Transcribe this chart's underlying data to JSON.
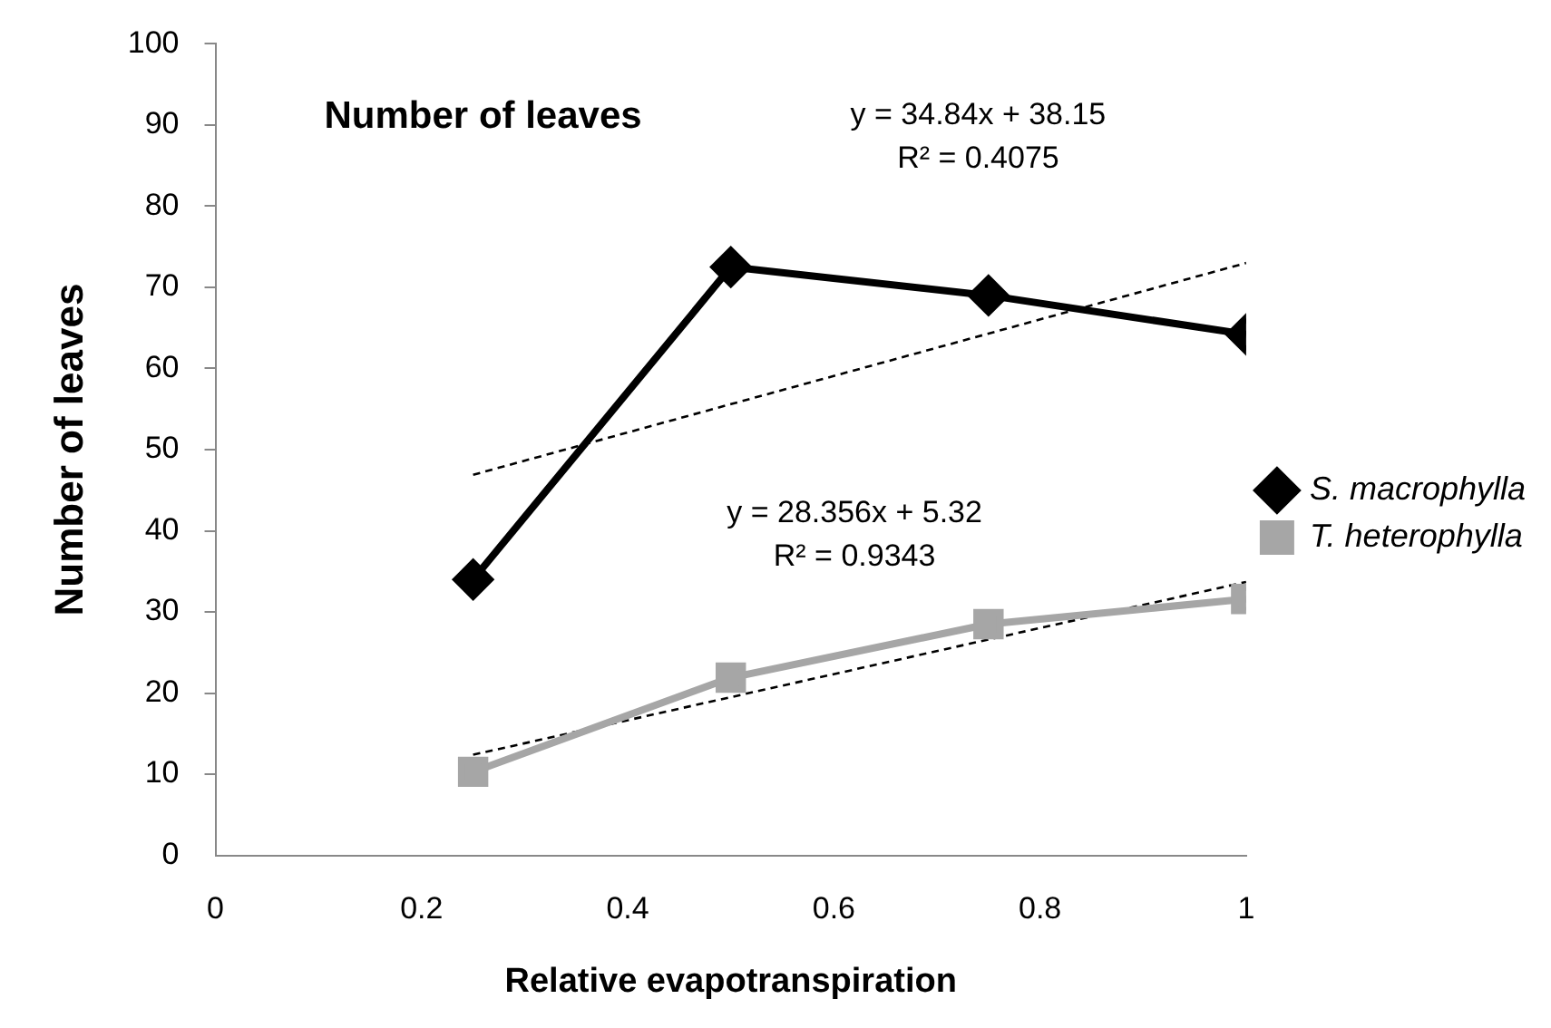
{
  "chart_data": {
    "type": "line",
    "title": "Number of leaves",
    "xlabel": "Relative evapotranspiration",
    "ylabel": "Number of leaves",
    "x": [
      0.25,
      0.5,
      0.75,
      1
    ],
    "series": [
      {
        "name": "S. macrophylla",
        "color": "#000000",
        "values": [
          34,
          72.5,
          69,
          64.2
        ],
        "marker": "diamond"
      },
      {
        "name": "T. heterophylla",
        "color": "#a6a6a6",
        "values": [
          10.3,
          21.9,
          28.5,
          31.6
        ],
        "marker": "square"
      },
      {
        "type": "line",
        "color": "#000000",
        "values": [
          46.9,
          55.6,
          64.3,
          73
        ],
        "marker": "none",
        "line_style": "dashed"
      },
      {
        "type": "line",
        "color": "#000000",
        "values": [
          12.4,
          19.5,
          26.6,
          33.7
        ],
        "marker": "none",
        "line_style": "dashed"
      }
    ],
    "annotations": [
      "y = 34.84x + 38.15\nR² = 0.4075",
      "y = 28.356x + 5.32\nR² = 0.9343"
    ],
    "xlim": [
      0,
      1
    ],
    "xticks": [
      0,
      0.2,
      0.4,
      0.6,
      0.8,
      1
    ],
    "ylim": [
      0,
      100
    ],
    "yticks": [
      0,
      10,
      20,
      30,
      40,
      50,
      60,
      70,
      80,
      90,
      100
    ],
    "grid": false,
    "legend": "right",
    "line_style": "solid"
  }
}
